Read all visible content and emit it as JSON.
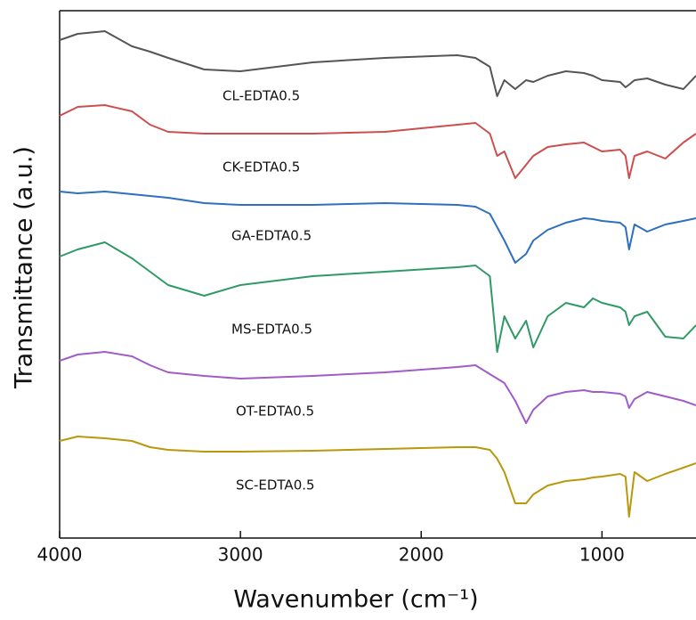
{
  "chart_data": {
    "type": "line",
    "x_label": "Wavenumber (cm⁻¹)",
    "y_label": "Transmittance (a.u.)",
    "x": [
      4000,
      3900,
      3750,
      3600,
      3500,
      3400,
      3200,
      3000,
      2600,
      2200,
      1800,
      1700,
      1620,
      1580,
      1540,
      1480,
      1420,
      1380,
      1300,
      1200,
      1100,
      1050,
      1000,
      900,
      870,
      850,
      820,
      750,
      650,
      550,
      480
    ],
    "xlim": [
      4000,
      480
    ],
    "xticks": [
      4000,
      3000,
      2000,
      1000
    ],
    "ylim": [
      0,
      592
    ],
    "series": [
      {
        "name": "CL-EDTA0.5",
        "color": "#555555",
        "values": [
          559,
          566,
          569,
          552,
          546,
          539,
          526,
          524,
          534,
          539,
          542,
          539,
          529,
          496,
          514,
          504,
          514,
          512,
          519,
          524,
          522,
          519,
          514,
          512,
          506,
          509,
          514,
          516,
          509,
          504,
          519
        ]
      },
      {
        "name": "CK-EDTA0.5",
        "color": "#cc4f4f",
        "values": [
          474,
          484,
          486,
          479,
          464,
          456,
          454,
          454,
          454,
          456,
          464,
          466,
          454,
          429,
          434,
          404,
          419,
          429,
          439,
          442,
          444,
          439,
          434,
          436,
          429,
          404,
          429,
          434,
          426,
          444,
          454
        ]
      },
      {
        "name": "GA-EDTA0.5",
        "color": "#2f6fbf",
        "values": [
          389,
          387,
          389,
          386,
          384,
          382,
          376,
          374,
          374,
          376,
          374,
          372,
          364,
          349,
          334,
          309,
          319,
          334,
          346,
          354,
          359,
          358,
          356,
          354,
          349,
          324,
          352,
          344,
          352,
          356,
          359
        ]
      },
      {
        "name": "MS-EDTA0.5",
        "color": "#2f9a66",
        "values": [
          316,
          324,
          332,
          314,
          299,
          284,
          272,
          284,
          294,
          299,
          304,
          306,
          294,
          209,
          249,
          224,
          244,
          214,
          249,
          264,
          259,
          269,
          264,
          259,
          254,
          239,
          249,
          254,
          226,
          224,
          239
        ]
      },
      {
        "name": "OT-EDTA0.5",
        "color": "#a05cc8",
        "values": [
          199,
          206,
          209,
          204,
          194,
          186,
          182,
          179,
          182,
          186,
          192,
          194,
          184,
          179,
          174,
          154,
          129,
          144,
          159,
          164,
          166,
          164,
          164,
          162,
          159,
          146,
          156,
          164,
          159,
          154,
          149
        ]
      },
      {
        "name": "SC-EDTA0.5",
        "color": "#b8980c",
        "values": [
          109,
          114,
          112,
          109,
          102,
          99,
          97,
          97,
          98,
          100,
          102,
          102,
          99,
          89,
          74,
          39,
          39,
          49,
          59,
          64,
          66,
          68,
          69,
          72,
          69,
          24,
          74,
          64,
          72,
          79,
          84
        ]
      }
    ]
  }
}
